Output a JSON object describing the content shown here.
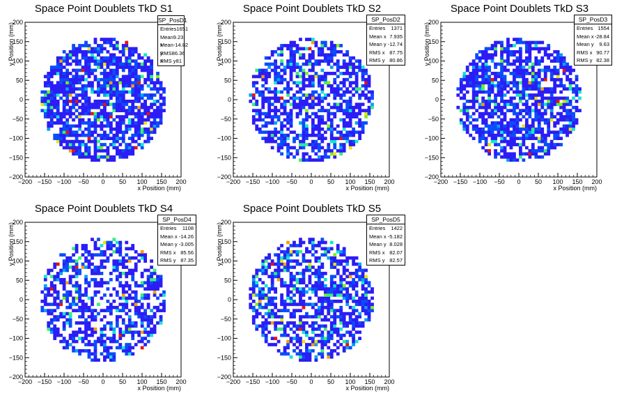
{
  "colors": {
    "palette": [
      "#2c1cf5",
      "#0a4dfa",
      "#0aa0f5",
      "#14e6d0",
      "#36f07a",
      "#7ef018",
      "#e8e40c",
      "#f5a00c",
      "#e8140a"
    ]
  },
  "chart_data": [
    {
      "type": "heatmap",
      "title": "Space Point Doublets TkD S1",
      "xlabel": "x Position (mm)",
      "ylabel": "y Position (mm)",
      "xlim": [
        -200,
        200
      ],
      "ylim": [
        -200,
        200
      ],
      "xticks": [
        "−200",
        "−150",
        "−100",
        "−50",
        "0",
        "50",
        "100",
        "150",
        "200"
      ],
      "yticks": [
        "200",
        "150",
        "100",
        "50",
        "0",
        "−50",
        "−100",
        "−150",
        "−200"
      ],
      "grid": false,
      "stats": {
        "name": "SP_PosD1",
        "rows": [
          {
            "label": "Entries",
            "value": "1651"
          },
          {
            "label": "Mean x",
            "value": "9.23"
          },
          {
            "label": "Mean y",
            "value": "-14.82"
          },
          {
            "label": "RMS x",
            "value": "86.36"
          },
          {
            "label": "RMS y",
            "value": "81"
          }
        ]
      },
      "seed": 11,
      "density": 0.72,
      "hot": 0.08
    },
    {
      "type": "heatmap",
      "title": "Space Point Doublets TkD S2",
      "xlabel": "x Position (mm)",
      "ylabel": "y Position (mm)",
      "xlim": [
        -200,
        200
      ],
      "ylim": [
        -200,
        200
      ],
      "xticks": [
        "−200",
        "−150",
        "−100",
        "−50",
        "0",
        "50",
        "100",
        "150",
        "200"
      ],
      "yticks": [
        "200",
        "150",
        "100",
        "50",
        "0",
        "−50",
        "−100",
        "−150",
        "−200"
      ],
      "grid": false,
      "stats": {
        "name": "SP_PosD2",
        "rows": [
          {
            "label": "Entries",
            "value": "1371"
          },
          {
            "label": "Mean x",
            "value": "7.935"
          },
          {
            "label": "Mean y",
            "value": "-12.74"
          },
          {
            "label": "RMS x",
            "value": "87.75"
          },
          {
            "label": "RMS y",
            "value": "80.86"
          }
        ]
      },
      "seed": 23,
      "density": 0.62,
      "hot": 0.12
    },
    {
      "type": "heatmap",
      "title": "Space Point Doublets TkD S3",
      "xlabel": "x Position (mm)",
      "ylabel": "y Position (mm)",
      "xlim": [
        -200,
        200
      ],
      "ylim": [
        -200,
        200
      ],
      "xticks": [
        "−200",
        "−150",
        "−100",
        "−50",
        "0",
        "50",
        "100",
        "150",
        "200"
      ],
      "yticks": [
        "200",
        "150",
        "100",
        "50",
        "0",
        "−50",
        "−100",
        "−150",
        "−200"
      ],
      "grid": false,
      "stats": {
        "name": "SP_PosD3",
        "rows": [
          {
            "label": "Entries",
            "value": "1554"
          },
          {
            "label": "Mean x",
            "value": "-28.84"
          },
          {
            "label": "Mean y",
            "value": "9.63"
          },
          {
            "label": "RMS x",
            "value": "90.77"
          },
          {
            "label": "RMS y",
            "value": "82.38"
          }
        ]
      },
      "seed": 37,
      "density": 0.66,
      "hot": 0.1
    },
    {
      "type": "heatmap",
      "title": "Space Point Doublets TkD S4",
      "xlabel": "x Position (mm)",
      "ylabel": "y Position (mm)",
      "xlim": [
        -200,
        200
      ],
      "ylim": [
        -200,
        200
      ],
      "xticks": [
        "−200",
        "−150",
        "−100",
        "−50",
        "0",
        "50",
        "100",
        "150",
        "200"
      ],
      "yticks": [
        "200",
        "150",
        "100",
        "50",
        "0",
        "−50",
        "−100",
        "−150",
        "−200"
      ],
      "grid": false,
      "stats": {
        "name": "SP_PosD4",
        "rows": [
          {
            "label": "Entries",
            "value": "1108"
          },
          {
            "label": "Mean x",
            "value": "-14.26"
          },
          {
            "label": "Mean y",
            "value": "-3.005"
          },
          {
            "label": "RMS x",
            "value": "85.56"
          },
          {
            "label": "RMS y",
            "value": "87.35"
          }
        ]
      },
      "seed": 41,
      "density": 0.52,
      "hot": 0.1
    },
    {
      "type": "heatmap",
      "title": "Space Point Doublets TkD S5",
      "xlabel": "x Position (mm)",
      "ylabel": "y Position (mm)",
      "xlim": [
        -200,
        200
      ],
      "ylim": [
        -200,
        200
      ],
      "xticks": [
        "−200",
        "−150",
        "−100",
        "−50",
        "0",
        "50",
        "100",
        "150",
        "200"
      ],
      "yticks": [
        "200",
        "150",
        "100",
        "50",
        "0",
        "−50",
        "−100",
        "−150",
        "−200"
      ],
      "grid": false,
      "stats": {
        "name": "SP_PosD5",
        "rows": [
          {
            "label": "Entries",
            "value": "1422"
          },
          {
            "label": "Mean x",
            "value": "-5.182"
          },
          {
            "label": "Mean y",
            "value": "8.028"
          },
          {
            "label": "RMS x",
            "value": "82.07"
          },
          {
            "label": "RMS y",
            "value": "82.57"
          }
        ]
      },
      "seed": 53,
      "density": 0.58,
      "hot": 0.16
    }
  ]
}
